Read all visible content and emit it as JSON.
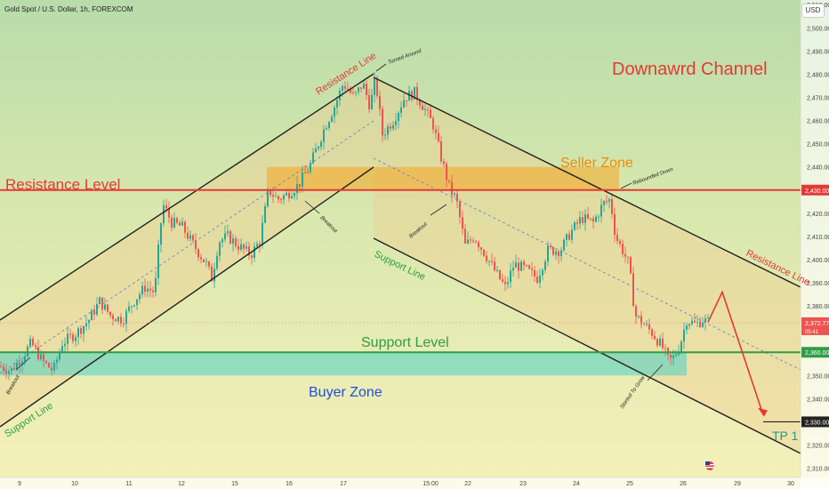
{
  "header": {
    "symbol": "Gold Spot / U.S. Dollar, 1h, FOREXCOM",
    "currency_button": "USD"
  },
  "chart_data": {
    "type": "candlestick",
    "title": "Downawrd Channel",
    "ylim": [
      2306,
      2512
    ],
    "y_ticks": [
      2310,
      2320,
      2330,
      2340,
      2350,
      2360,
      2370,
      2380,
      2390,
      2400,
      2410,
      2420,
      2430,
      2440,
      2450,
      2460,
      2470,
      2480,
      2490,
      2500,
      2510
    ],
    "y_tick_labels": [
      "2,310.00",
      "2,320.00",
      "2,330.00",
      "2,340.00",
      "2,350.00",
      "2,360.00",
      "2,370.00",
      "2,380.00",
      "2,390.00",
      "2,400.00",
      "2,410.00",
      "2,420.00",
      "2,430.00",
      "2,440.00",
      "2,450.00",
      "2,460.00",
      "2,470.00",
      "2,480.00",
      "2,490.00",
      "2,500.00",
      "2,510.00"
    ],
    "x_ticks": [
      "9",
      "10",
      "11",
      "12",
      "15",
      "16",
      "17",
      "15:00",
      "22",
      "23",
      "24",
      "25",
      "26",
      "29",
      "30"
    ],
    "price_labels": {
      "resistance": "2,430.00",
      "current": "2,372.77",
      "countdown": "05:41",
      "support": "2,360.00",
      "target": "2,330.00"
    },
    "levels": {
      "resistance": 2430,
      "support": 2360,
      "target": 2330,
      "current": 2372.77
    },
    "zones": {
      "seller": {
        "label": "Seller Zone",
        "low": 2430,
        "high": 2440
      },
      "buyer": {
        "label": "Buyer Zone",
        "low": 2350,
        "high": 2360
      }
    },
    "annotations": {
      "resistance_level": "Resistance Level",
      "support_level": "Support Level",
      "resistance_line_up": "Resistance Line",
      "support_line_up": "Support Line",
      "support_line_down": "Support Line",
      "resistance_line_down": "Resistance Line",
      "turned_around": "Turned Around",
      "breakout_1": "Breakout",
      "breakout_2": "Breakout",
      "breakout_3": "Breakout",
      "rebounded_down": "Rebounded Down",
      "started_to_grow": "Started To Grow",
      "tp1": "TP 1"
    },
    "path": [
      [
        0,
        2354
      ],
      [
        12,
        2352
      ],
      [
        25,
        2358
      ],
      [
        35,
        2364
      ],
      [
        48,
        2356
      ],
      [
        60,
        2352
      ],
      [
        70,
        2364
      ],
      [
        85,
        2368
      ],
      [
        100,
        2374
      ],
      [
        112,
        2382
      ],
      [
        124,
        2376
      ],
      [
        138,
        2374
      ],
      [
        150,
        2382
      ],
      [
        163,
        2388
      ],
      [
        174,
        2386
      ],
      [
        178,
        2404
      ],
      [
        183,
        2424
      ],
      [
        193,
        2416
      ],
      [
        205,
        2414
      ],
      [
        218,
        2406
      ],
      [
        232,
        2398
      ],
      [
        238,
        2392
      ],
      [
        246,
        2408
      ],
      [
        256,
        2410
      ],
      [
        268,
        2406
      ],
      [
        282,
        2402
      ],
      [
        292,
        2408
      ],
      [
        302,
        2430
      ],
      [
        312,
        2426
      ],
      [
        322,
        2428
      ],
      [
        335,
        2432
      ],
      [
        348,
        2440
      ],
      [
        356,
        2448
      ],
      [
        366,
        2458
      ],
      [
        376,
        2466
      ],
      [
        386,
        2476
      ],
      [
        398,
        2470
      ],
      [
        408,
        2476
      ],
      [
        416,
        2466
      ],
      [
        422,
        2478
      ],
      [
        430,
        2454
      ],
      [
        442,
        2460
      ],
      [
        455,
        2470
      ],
      [
        466,
        2472
      ],
      [
        476,
        2466
      ],
      [
        487,
        2458
      ],
      [
        496,
        2444
      ],
      [
        506,
        2430
      ],
      [
        513,
        2426
      ],
      [
        523,
        2406
      ],
      [
        533,
        2410
      ],
      [
        546,
        2402
      ],
      [
        558,
        2394
      ],
      [
        568,
        2388
      ],
      [
        578,
        2398
      ],
      [
        590,
        2396
      ],
      [
        604,
        2392
      ],
      [
        616,
        2404
      ],
      [
        630,
        2404
      ],
      [
        642,
        2412
      ],
      [
        654,
        2418
      ],
      [
        667,
        2416
      ],
      [
        678,
        2424
      ],
      [
        686,
        2426
      ],
      [
        692,
        2410
      ],
      [
        700,
        2404
      ],
      [
        707,
        2398
      ],
      [
        714,
        2376
      ],
      [
        724,
        2372
      ],
      [
        734,
        2368
      ],
      [
        745,
        2362
      ],
      [
        752,
        2356
      ],
      [
        758,
        2358
      ],
      [
        765,
        2364
      ],
      [
        772,
        2374
      ],
      [
        782,
        2372
      ],
      [
        790,
        2374
      ],
      [
        796,
        2373
      ]
    ],
    "projection": [
      [
        796,
        2373
      ],
      [
        812,
        2386
      ],
      [
        858,
        2333
      ]
    ]
  }
}
